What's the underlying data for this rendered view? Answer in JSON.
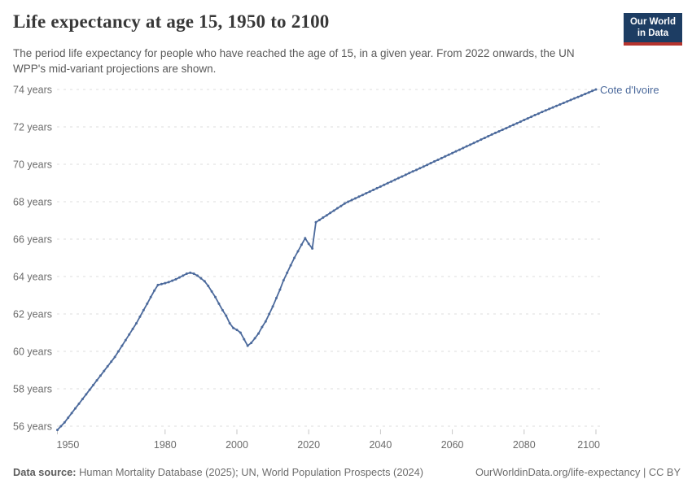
{
  "header": {
    "title": "Life expectancy at age 15, 1950 to 2100",
    "subtitle": "The period life expectancy for people who have reached the age of 15, in a given year. From 2022 onwards, the UN WPP's mid-variant projections are shown.",
    "logo": {
      "line1": "Our World",
      "line2": "in Data"
    }
  },
  "chart_data": {
    "type": "line",
    "title": "Life expectancy at age 15, 1950 to 2100",
    "entity": "Cote d'Ivoire",
    "unit": "years",
    "line_color": "#4c6a9c",
    "grid": "horizontal dashed",
    "legend_position": "end-of-line label",
    "projection_start_year": 2022,
    "xlim": [
      1950,
      2100
    ],
    "ylim": [
      55.6,
      74.4
    ],
    "x_ticks": [
      1950,
      1980,
      2000,
      2020,
      2040,
      2060,
      2080,
      2100
    ],
    "y_ticks": [
      56,
      58,
      60,
      62,
      64,
      66,
      68,
      70,
      72,
      74
    ],
    "y_tick_suffix": " years",
    "years": [
      1950,
      1951,
      1952,
      1953,
      1954,
      1955,
      1956,
      1957,
      1958,
      1959,
      1960,
      1961,
      1962,
      1963,
      1964,
      1965,
      1966,
      1967,
      1968,
      1969,
      1970,
      1971,
      1972,
      1973,
      1974,
      1975,
      1976,
      1977,
      1978,
      1979,
      1980,
      1981,
      1982,
      1983,
      1984,
      1985,
      1986,
      1987,
      1988,
      1989,
      1990,
      1991,
      1992,
      1993,
      1994,
      1995,
      1996,
      1997,
      1998,
      1999,
      2000,
      2001,
      2002,
      2003,
      2004,
      2005,
      2006,
      2007,
      2008,
      2009,
      2010,
      2011,
      2012,
      2013,
      2014,
      2015,
      2016,
      2017,
      2018,
      2019,
      2020,
      2021,
      2022,
      2023,
      2024,
      2025,
      2026,
      2027,
      2028,
      2029,
      2030,
      2031,
      2032,
      2033,
      2034,
      2035,
      2036,
      2037,
      2038,
      2039,
      2040,
      2041,
      2042,
      2043,
      2044,
      2045,
      2046,
      2047,
      2048,
      2049,
      2050,
      2051,
      2052,
      2053,
      2054,
      2055,
      2056,
      2057,
      2058,
      2059,
      2060,
      2061,
      2062,
      2063,
      2064,
      2065,
      2066,
      2067,
      2068,
      2069,
      2070,
      2071,
      2072,
      2073,
      2074,
      2075,
      2076,
      2077,
      2078,
      2079,
      2080,
      2081,
      2082,
      2083,
      2084,
      2085,
      2086,
      2087,
      2088,
      2089,
      2090,
      2091,
      2092,
      2093,
      2094,
      2095,
      2096,
      2097,
      2098,
      2099,
      2100
    ],
    "values": [
      55.8,
      56.0,
      56.2,
      56.45,
      56.7,
      56.95,
      57.2,
      57.45,
      57.7,
      57.95,
      58.2,
      58.45,
      58.7,
      58.95,
      59.2,
      59.45,
      59.7,
      60.0,
      60.3,
      60.6,
      60.9,
      61.2,
      61.5,
      61.85,
      62.2,
      62.55,
      62.9,
      63.25,
      63.55,
      63.6,
      63.65,
      63.7,
      63.78,
      63.85,
      63.95,
      64.05,
      64.15,
      64.2,
      64.15,
      64.05,
      63.9,
      63.75,
      63.5,
      63.2,
      62.9,
      62.55,
      62.2,
      61.9,
      61.5,
      61.25,
      61.15,
      61.0,
      60.65,
      60.3,
      60.45,
      60.7,
      60.95,
      61.3,
      61.6,
      62.0,
      62.4,
      62.85,
      63.3,
      63.8,
      64.2,
      64.6,
      65.0,
      65.35,
      65.7,
      66.05,
      65.75,
      65.5,
      66.9,
      67.02,
      67.15,
      67.27,
      67.4,
      67.52,
      67.65,
      67.77,
      67.9,
      68.0,
      68.09,
      68.18,
      68.27,
      68.36,
      68.45,
      68.54,
      68.63,
      68.72,
      68.81,
      68.9,
      68.99,
      69.08,
      69.17,
      69.26,
      69.35,
      69.44,
      69.53,
      69.62,
      69.7,
      69.79,
      69.88,
      69.97,
      70.06,
      70.15,
      70.24,
      70.33,
      70.42,
      70.51,
      70.6,
      70.69,
      70.78,
      70.87,
      70.96,
      71.05,
      71.14,
      71.23,
      71.32,
      71.41,
      71.5,
      71.59,
      71.68,
      71.76,
      71.85,
      71.93,
      72.02,
      72.11,
      72.19,
      72.28,
      72.37,
      72.45,
      72.54,
      72.63,
      72.71,
      72.8,
      72.88,
      72.96,
      73.04,
      73.12,
      73.2,
      73.28,
      73.36,
      73.44,
      73.52,
      73.6,
      73.68,
      73.76,
      73.84,
      73.92,
      74.0
    ]
  },
  "footer": {
    "source_label": "Data source:",
    "source_text": " Human Mortality Database (2025); UN, World Population Prospects (2024)",
    "right_text": "OurWorldinData.org/life-expectancy | CC BY"
  },
  "colors": {
    "line": "#4c6a9c",
    "grid": "#dcdcdc",
    "axis_text": "#6b6b6b",
    "title_text": "#383838",
    "subtitle_text": "#5a5a5a",
    "logo_bg": "#1d3d63",
    "logo_accent": "#b5342e"
  }
}
